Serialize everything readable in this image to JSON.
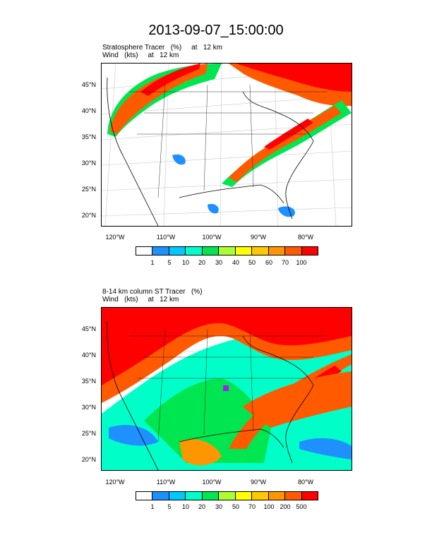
{
  "title": "2013-09-07_15:00:00",
  "panels": [
    {
      "line1": "Stratosphere Tracer   (%)     at   12 km",
      "line2": "Wind   (kts)     at   12 km",
      "lat_labels": [
        "45°N",
        "40°N",
        "35°N",
        "30°N",
        "25°N",
        "20°N"
      ],
      "lon_labels": [
        "120°W",
        "110°W",
        "100°W",
        "90°W",
        "80°W"
      ],
      "colorbar_labels": [
        "1",
        "5",
        "10",
        "20",
        "30",
        "40",
        "50",
        "60",
        "70",
        "100"
      ]
    },
    {
      "line1": "8-14 km column ST Tracer   (%)",
      "line2": "Wind   (kts)     at   12 km",
      "lat_labels": [
        "45°N",
        "40°N",
        "35°N",
        "30°N",
        "25°N",
        "20°N"
      ],
      "lon_labels": [
        "120°W",
        "110°W",
        "100°W",
        "90°W",
        "80°W"
      ],
      "colorbar_labels": [
        "1",
        "5",
        "10",
        "20",
        "30",
        "50",
        "70",
        "100",
        "200",
        "500"
      ]
    }
  ],
  "colors": [
    "#ffffff",
    "#1e90ff",
    "#00c8ff",
    "#00ffc8",
    "#00e650",
    "#aaff32",
    "#ffff00",
    "#ffc800",
    "#ff9600",
    "#ff5a00",
    "#ff0000"
  ]
}
